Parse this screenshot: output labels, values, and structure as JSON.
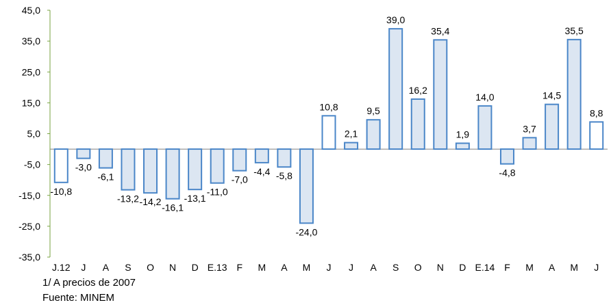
{
  "chart_data": {
    "type": "bar",
    "title": "",
    "xlabel": "",
    "ylabel": "",
    "categories": [
      "J.12",
      "J",
      "A",
      "S",
      "O",
      "N",
      "D",
      "E.13",
      "F",
      "M",
      "A",
      "M",
      "J",
      "J",
      "A",
      "S",
      "O",
      "N",
      "D",
      "E.14",
      "F",
      "M",
      "A",
      "M",
      "J"
    ],
    "values": [
      -10.8,
      -3.0,
      -6.1,
      -13.2,
      -14.2,
      -16.1,
      -13.1,
      -11.0,
      -7.0,
      -4.4,
      -5.8,
      -24.0,
      10.8,
      2.1,
      9.5,
      39.0,
      16.2,
      35.4,
      1.9,
      14.0,
      -4.8,
      3.7,
      14.5,
      35.5,
      8.8
    ],
    "value_labels": [
      "-10,8",
      "-3,0",
      "-6,1",
      "-13,2",
      "-14,2",
      "-16,1",
      "-13,1",
      "-11,0",
      "-7,0",
      "-4,4",
      "-5,8",
      "-24,0",
      "10,8",
      "2,1",
      "9,5",
      "39,0",
      "16,2",
      "35,4",
      "1,9",
      "14,0",
      "-4,8",
      "3,7",
      "14,5",
      "35,5",
      "8,8"
    ],
    "bar_style": [
      "outline",
      "fill",
      "fill",
      "fill",
      "fill",
      "fill",
      "fill",
      "fill",
      "fill",
      "fill",
      "fill",
      "fill",
      "outline",
      "fill",
      "fill",
      "fill",
      "fill",
      "fill",
      "fill",
      "fill",
      "fill",
      "fill",
      "fill",
      "fill",
      "outline"
    ],
    "ylim": [
      -35,
      45
    ],
    "yticks": [
      45,
      35,
      25,
      15,
      5,
      -5,
      -15,
      -25,
      -35
    ],
    "ytick_labels": [
      "45,0",
      "35,0",
      "25,0",
      "15,0",
      "5,0",
      "-5,0",
      "-15,0",
      "-25,0",
      "-35,0"
    ],
    "grid": false,
    "colors": {
      "bar_fill": "#dce6f2",
      "bar_stroke": "#4a86c8",
      "outline_fill": "#ffffff",
      "axis": "#77a23f"
    }
  },
  "notes": {
    "line1": "1/ A precios de 2007",
    "line2": "Fuente: MINEM"
  }
}
